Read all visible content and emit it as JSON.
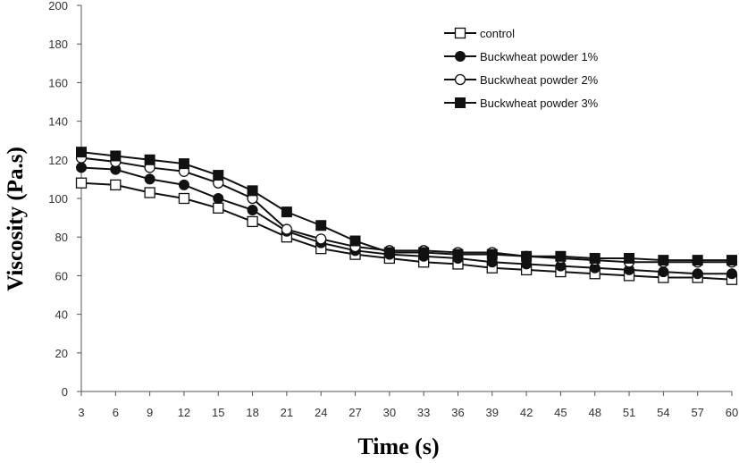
{
  "chart_data": {
    "type": "line",
    "xlabel": "Time (s)",
    "ylabel": "Viscosity (Pa.s)",
    "x": [
      3,
      6,
      9,
      12,
      15,
      18,
      21,
      24,
      27,
      30,
      33,
      36,
      39,
      42,
      45,
      48,
      51,
      54,
      57,
      60
    ],
    "ylim": [
      0,
      200
    ],
    "yticks": [
      0,
      20,
      40,
      60,
      80,
      100,
      120,
      140,
      160,
      180,
      200
    ],
    "legend_position": "top-right",
    "grid": false,
    "series": [
      {
        "name": "control",
        "marker": "open-square",
        "values": [
          108,
          107,
          103,
          100,
          95,
          88,
          80,
          74,
          71,
          69,
          67,
          66,
          64,
          63,
          62,
          61,
          60,
          59,
          59,
          58
        ]
      },
      {
        "name": "Buckwheat powder 1%",
        "marker": "filled-circle",
        "values": [
          116,
          115,
          110,
          107,
          100,
          94,
          83,
          77,
          73,
          71,
          70,
          69,
          67,
          66,
          65,
          64,
          63,
          62,
          61,
          61
        ]
      },
      {
        "name": "Buckwheat powder 2%",
        "marker": "open-circle",
        "values": [
          121,
          119,
          116,
          114,
          108,
          100,
          84,
          79,
          75,
          73,
          73,
          72,
          72,
          70,
          69,
          68,
          67,
          67,
          67,
          67
        ]
      },
      {
        "name": "Buckwheat powder 3%",
        "marker": "filled-square",
        "values": [
          124,
          122,
          120,
          118,
          112,
          104,
          93,
          86,
          78,
          72,
          72,
          71,
          71,
          70,
          70,
          69,
          69,
          68,
          68,
          68
        ]
      }
    ]
  }
}
